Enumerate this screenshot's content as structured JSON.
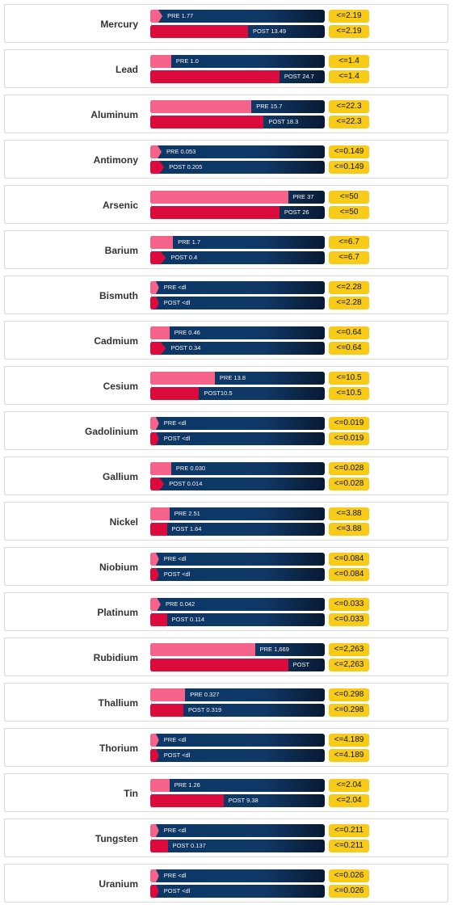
{
  "chart_data": {
    "type": "bar",
    "orientation": "horizontal",
    "colors": {
      "pre": "#f5628a",
      "post": "#dc0b3d",
      "track": "#0c3767",
      "reference": "#f7cb17"
    },
    "metals": [
      {
        "name": "Mercury",
        "pre": {
          "value": 1.77,
          "label": "PRE 1.77",
          "fill": 0.07
        },
        "post": {
          "value": 13.49,
          "label": "POST 13.49",
          "fill": 0.56
        },
        "reference": "<=2.19"
      },
      {
        "name": "Lead",
        "pre": {
          "value": 1.0,
          "label": "PRE 1.0",
          "fill": 0.12
        },
        "post": {
          "value": 24.7,
          "label": "POST 24.7",
          "fill": 0.74
        },
        "reference": "<=1.4"
      },
      {
        "name": "Aluminum",
        "pre": {
          "value": 15.7,
          "label": "PRE 15.7",
          "fill": 0.58
        },
        "post": {
          "value": 18.3,
          "label": "POST 18.3",
          "fill": 0.65
        },
        "reference": "<=22.3"
      },
      {
        "name": "Antimony",
        "pre": {
          "value": 0.053,
          "label": "PRE 0.053",
          "fill": 0.065
        },
        "post": {
          "value": 0.205,
          "label": "POST 0.205",
          "fill": 0.08
        },
        "reference": "<=0.149"
      },
      {
        "name": "Arsenic",
        "pre": {
          "value": 37,
          "label": "PRE 37",
          "fill": 0.79
        },
        "post": {
          "value": 26,
          "label": "POST 26",
          "fill": 0.74
        },
        "reference": "<=50"
      },
      {
        "name": "Barium",
        "pre": {
          "value": 1.7,
          "label": "PRE 1.7",
          "fill": 0.13
        },
        "post": {
          "value": 0.4,
          "label": "POST 0.4",
          "fill": 0.09
        },
        "reference": "<=6.7"
      },
      {
        "name": "Bismuth",
        "pre": {
          "value": null,
          "label": "PRE <dl",
          "fill": 0.05
        },
        "post": {
          "value": null,
          "label": "POST <dl",
          "fill": 0.05
        },
        "reference": "<=2.28"
      },
      {
        "name": "Cadmium",
        "pre": {
          "value": 0.46,
          "label": "PRE 0.46",
          "fill": 0.11
        },
        "post": {
          "value": 0.34,
          "label": "POST 0.34",
          "fill": 0.09
        },
        "reference": "<=0.64"
      },
      {
        "name": "Cesium",
        "pre": {
          "value": 13.8,
          "label": "PRE 13.8",
          "fill": 0.37
        },
        "post": {
          "value": 10.5,
          "label": "POST10.5",
          "fill": 0.28
        },
        "reference": "<=10.5"
      },
      {
        "name": "Gadolinium",
        "pre": {
          "value": null,
          "label": "PRE <dl",
          "fill": 0.05
        },
        "post": {
          "value": null,
          "label": "POST <dl",
          "fill": 0.05
        },
        "reference": "<=0.019"
      },
      {
        "name": "Gallium",
        "pre": {
          "value": 0.03,
          "label": "PRE 0.030",
          "fill": 0.12
        },
        "post": {
          "value": 0.014,
          "label": "POST 0.014",
          "fill": 0.08
        },
        "reference": "<=0.028"
      },
      {
        "name": "Nickel",
        "pre": {
          "value": 2.51,
          "label": "PRE 2.51",
          "fill": 0.11
        },
        "post": {
          "value": 1.64,
          "label": "POST 1.64",
          "fill": 0.095
        },
        "reference": "<=3.88"
      },
      {
        "name": "Niobium",
        "pre": {
          "value": null,
          "label": "PRE <dl",
          "fill": 0.05
        },
        "post": {
          "value": null,
          "label": "POST <dl",
          "fill": 0.05
        },
        "reference": "<=0.084"
      },
      {
        "name": "Platinum",
        "pre": {
          "value": 0.042,
          "label": "PRE 0.042",
          "fill": 0.06
        },
        "post": {
          "value": 0.114,
          "label": "POST 0.114",
          "fill": 0.095
        },
        "reference": "<=0.033"
      },
      {
        "name": "Rubidium",
        "pre": {
          "value": 1669,
          "label": "PRE 1,669",
          "fill": 0.6
        },
        "post": {
          "value": null,
          "label": "POST",
          "fill": 0.79
        },
        "reference": "<=2,263"
      },
      {
        "name": "Thallium",
        "pre": {
          "value": 0.327,
          "label": "PRE 0.327",
          "fill": 0.2
        },
        "post": {
          "value": 0.319,
          "label": "POST 0.319",
          "fill": 0.19
        },
        "reference": "<=0.298"
      },
      {
        "name": "Thorium",
        "pre": {
          "value": null,
          "label": "PRE <dl",
          "fill": 0.05
        },
        "post": {
          "value": null,
          "label": "POST <dl",
          "fill": 0.05
        },
        "reference": "<=4.189"
      },
      {
        "name": "Tin",
        "pre": {
          "value": 1.26,
          "label": "PRE 1.26",
          "fill": 0.11
        },
        "post": {
          "value": 9.38,
          "label": "POST 9.38",
          "fill": 0.42
        },
        "reference": "<=2.04"
      },
      {
        "name": "Tungsten",
        "pre": {
          "value": null,
          "label": "PRE <dl",
          "fill": 0.05
        },
        "post": {
          "value": 0.137,
          "label": "POST 0.137",
          "fill": 0.1
        },
        "reference": "<=0.211"
      },
      {
        "name": "Uranium",
        "pre": {
          "value": null,
          "label": "PRE <dl",
          "fill": 0.05
        },
        "post": {
          "value": null,
          "label": "POST <dl",
          "fill": 0.05
        },
        "reference": "<=0.026"
      }
    ]
  }
}
